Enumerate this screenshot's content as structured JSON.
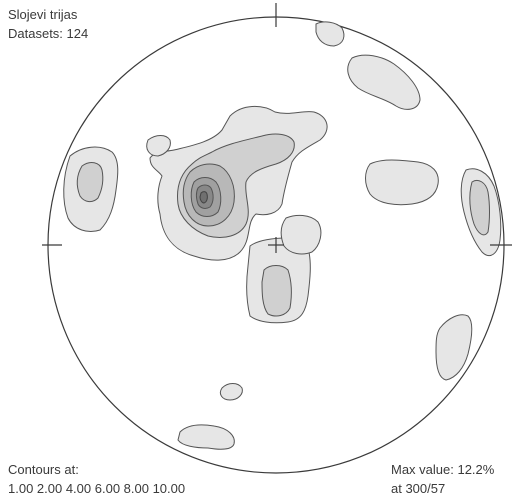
{
  "header": {
    "title": "Slojevi trijas",
    "datasets": "Datasets: 124"
  },
  "footer": {
    "contours_heading": "Contours at:",
    "contours_values": "1.00 2.00 4.00 6.00 8.00 10.00",
    "max_value": "Max value: 12.2%",
    "max_location": "at 300/57"
  },
  "diagram": {
    "type": "density stereonet (equal-area, lower hemisphere)",
    "contour_levels": [
      1.0,
      2.0,
      4.0,
      6.0,
      8.0,
      10.0
    ],
    "max_value_percent": 12.2,
    "max_at": "300/57",
    "colors": {
      "level_1": "#e6e6e6",
      "level_2": "#d0d0d0",
      "level_3": "#b8b8b8",
      "level_4": "#a0a0a0",
      "level_5": "#888888",
      "level_6": "#707070",
      "outline": "#555555"
    }
  }
}
